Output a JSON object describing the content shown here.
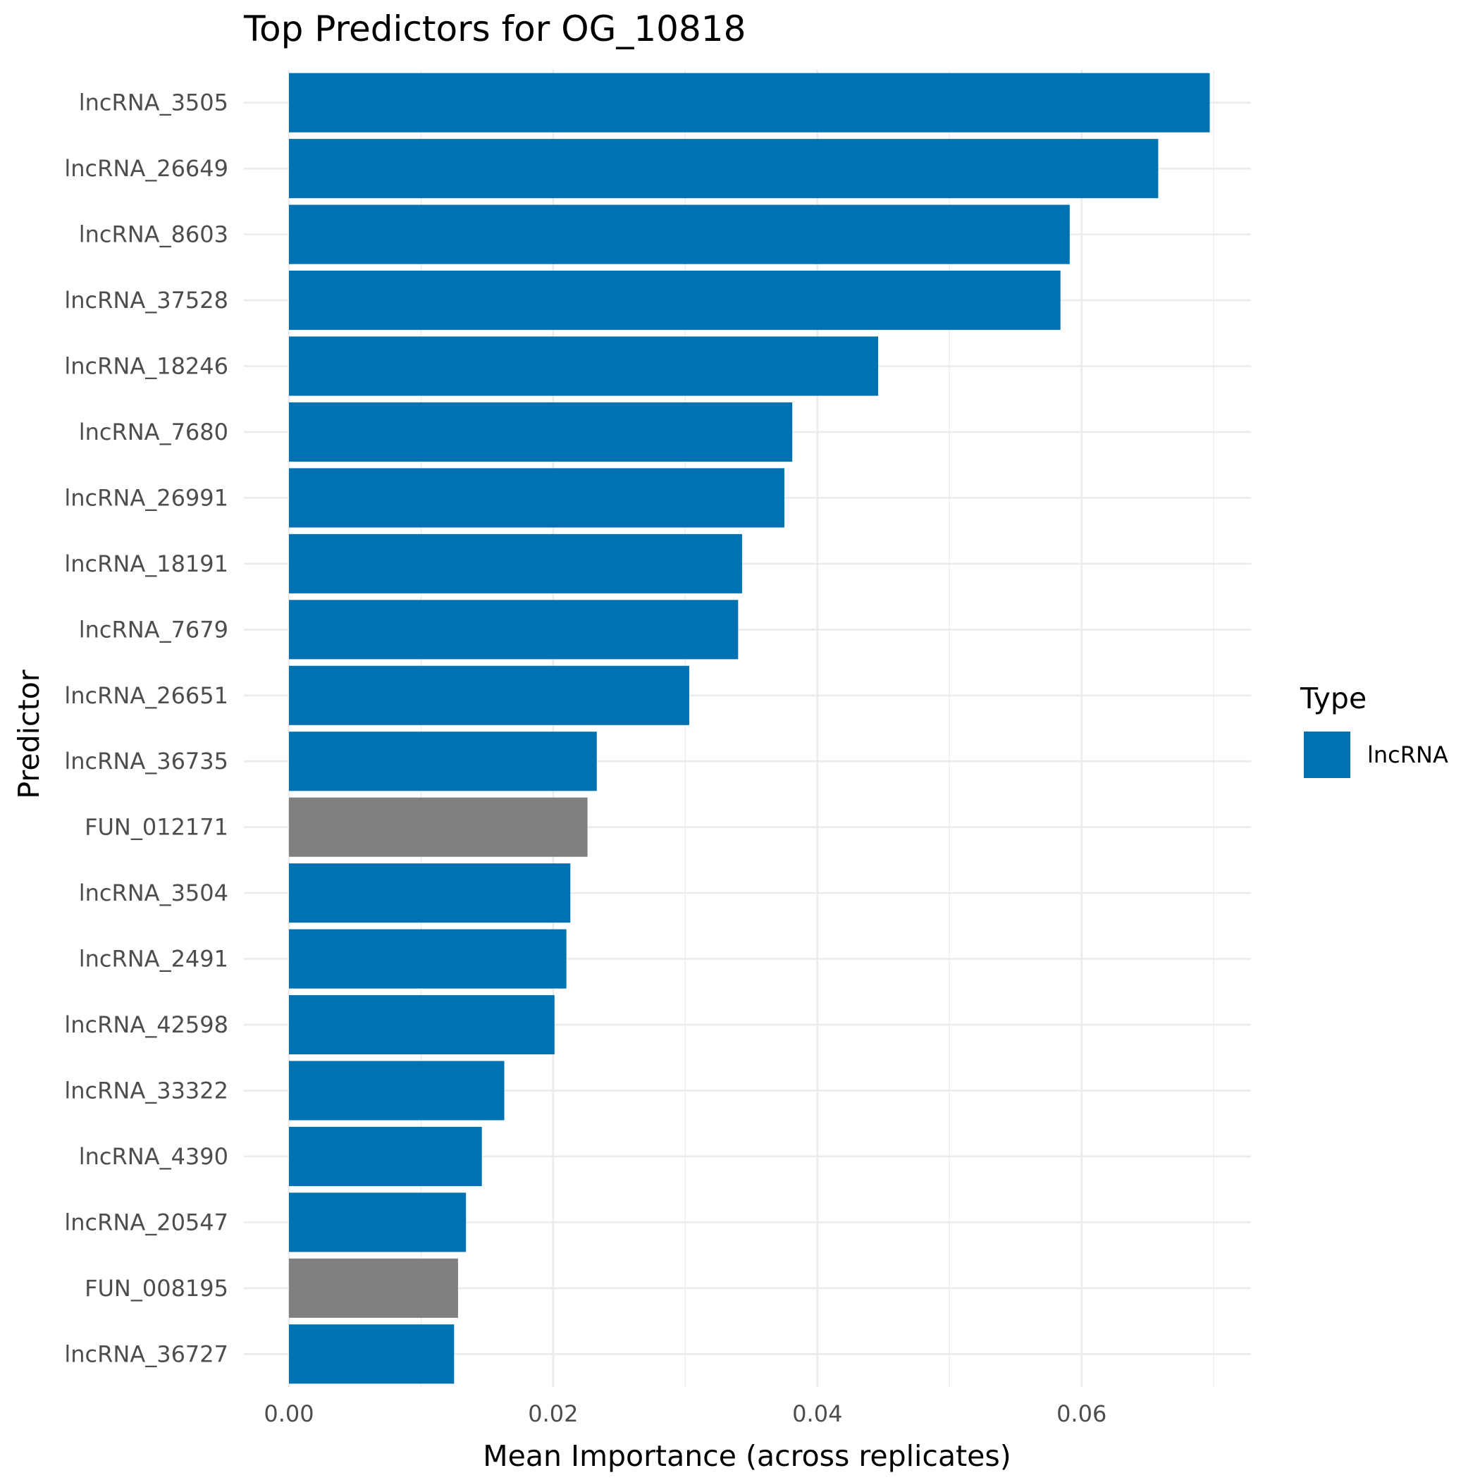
{
  "chart_data": {
    "type": "bar",
    "orientation": "horizontal",
    "title": "Top Predictors for OG_10818",
    "xlabel": "Mean Importance (across replicates)",
    "ylabel": "Predictor",
    "xlim": [
      0,
      0.0728
    ],
    "xticks": [
      0.0,
      0.02,
      0.04,
      0.06
    ],
    "xtick_labels": [
      "0.00",
      "0.02",
      "0.04",
      "0.06"
    ],
    "grid": true,
    "legend": {
      "title": "Type",
      "position": "right",
      "entries": [
        {
          "label": "lncRNA",
          "color": "#0072B2"
        }
      ]
    },
    "colors": {
      "lncRNA": "#0072B2",
      "gene": "#808080"
    },
    "categories": [
      "lncRNA_3505",
      "lncRNA_26649",
      "lncRNA_8603",
      "lncRNA_37528",
      "lncRNA_18246",
      "lncRNA_7680",
      "lncRNA_26991",
      "lncRNA_18191",
      "lncRNA_7679",
      "lncRNA_26651",
      "lncRNA_36735",
      "FUN_012171",
      "lncRNA_3504",
      "lncRNA_2491",
      "lncRNA_42598",
      "lncRNA_33322",
      "lncRNA_4390",
      "lncRNA_20547",
      "FUN_008195",
      "lncRNA_36727"
    ],
    "values": [
      0.0697,
      0.0658,
      0.0591,
      0.0584,
      0.0446,
      0.0381,
      0.0375,
      0.0343,
      0.034,
      0.0303,
      0.0233,
      0.0226,
      0.0213,
      0.021,
      0.0201,
      0.0163,
      0.0146,
      0.0134,
      0.0128,
      0.0125
    ],
    "types": [
      "lncRNA",
      "lncRNA",
      "lncRNA",
      "lncRNA",
      "lncRNA",
      "lncRNA",
      "lncRNA",
      "lncRNA",
      "lncRNA",
      "lncRNA",
      "lncRNA",
      "gene",
      "lncRNA",
      "lncRNA",
      "lncRNA",
      "lncRNA",
      "lncRNA",
      "lncRNA",
      "gene",
      "lncRNA"
    ]
  }
}
